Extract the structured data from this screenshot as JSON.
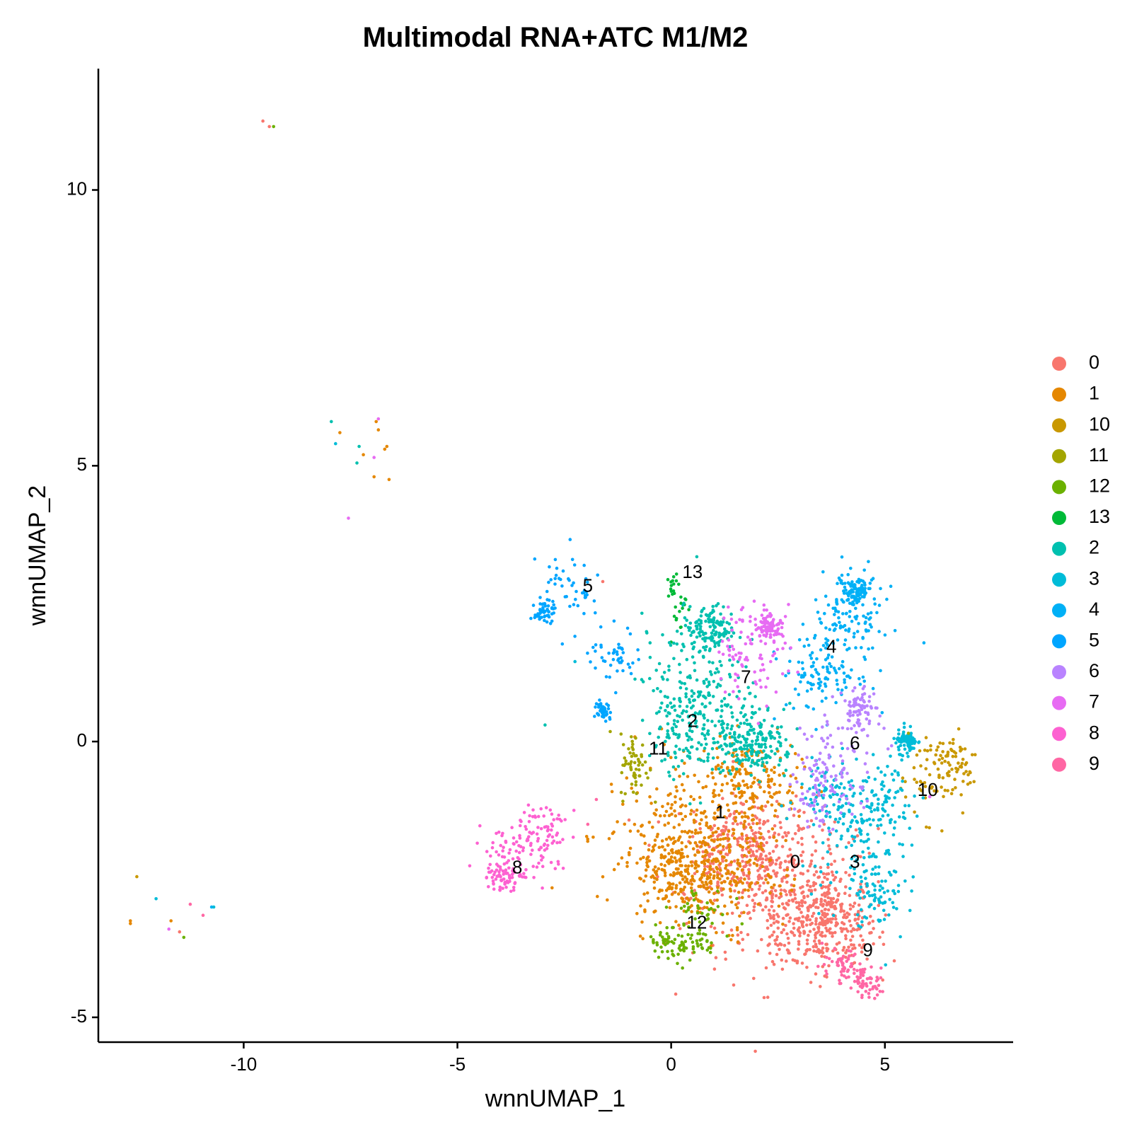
{
  "chart_data": {
    "type": "scatter",
    "title": "Multimodal RNA+ATC M1/M2",
    "xlabel": "wnnUMAP_1",
    "ylabel": "wnnUMAP_2",
    "xlim": [
      -13.4,
      8.0
    ],
    "ylim": [
      -5.45,
      12.2
    ],
    "x_ticks": [
      -10,
      -5,
      0,
      5
    ],
    "y_ticks": [
      -5,
      0,
      5,
      10
    ],
    "grid": false,
    "legend_position": "right",
    "legend": [
      {
        "label": "0",
        "color": "#F8766D"
      },
      {
        "label": "1",
        "color": "#E58700"
      },
      {
        "label": "10",
        "color": "#C99800"
      },
      {
        "label": "11",
        "color": "#A3A500"
      },
      {
        "label": "12",
        "color": "#6BB100"
      },
      {
        "label": "13",
        "color": "#00BA38"
      },
      {
        "label": "2",
        "color": "#00C0AF"
      },
      {
        "label": "3",
        "color": "#00BCD8"
      },
      {
        "label": "4",
        "color": "#00B0F6"
      },
      {
        "label": "5",
        "color": "#00A5FF"
      },
      {
        "label": "6",
        "color": "#B983FF"
      },
      {
        "label": "7",
        "color": "#E76BF3"
      },
      {
        "label": "8",
        "color": "#FD61D1"
      },
      {
        "label": "9",
        "color": "#FF67A4"
      }
    ],
    "clusters": [
      {
        "name": "0",
        "label_pos": [
          2.9,
          -2.2
        ],
        "color": "#F8766D",
        "n": 900,
        "blobs": [
          [
            2.6,
            -2.8,
            1.1,
            0.7
          ],
          [
            1.8,
            -2.0,
            0.8,
            0.5
          ],
          [
            3.6,
            -3.3,
            0.6,
            0.4
          ]
        ]
      },
      {
        "name": "1",
        "label_pos": [
          1.15,
          -1.3
        ],
        "color": "#E58700",
        "n": 750,
        "blobs": [
          [
            0.2,
            -1.6,
            0.9,
            0.7
          ],
          [
            1.3,
            -2.4,
            0.7,
            0.5
          ],
          [
            0.1,
            -2.4,
            0.6,
            0.4
          ],
          [
            1.8,
            -0.8,
            0.6,
            0.4
          ]
        ]
      },
      {
        "name": "10",
        "label_pos": [
          6.0,
          -0.9
        ],
        "color": "#C99800",
        "n": 110,
        "blobs": [
          [
            6.2,
            -0.6,
            0.45,
            0.4
          ],
          [
            6.6,
            -0.3,
            0.3,
            0.25
          ]
        ]
      },
      {
        "name": "11",
        "label_pos": [
          -0.3,
          -0.15
        ],
        "color": "#A3A500",
        "n": 60,
        "blobs": [
          [
            -0.85,
            -0.45,
            0.17,
            0.3
          ]
        ]
      },
      {
        "name": "12",
        "label_pos": [
          0.6,
          -3.3
        ],
        "color": "#6BB100",
        "n": 120,
        "blobs": [
          [
            -0.1,
            -3.6,
            0.25,
            0.15
          ],
          [
            0.45,
            -3.7,
            0.3,
            0.15
          ],
          [
            0.7,
            -3.1,
            0.35,
            0.25
          ]
        ]
      },
      {
        "name": "13",
        "label_pos": [
          0.5,
          3.05
        ],
        "color": "#00BA38",
        "n": 30,
        "blobs": [
          [
            0.05,
            2.85,
            0.06,
            0.12
          ],
          [
            0.15,
            2.4,
            0.1,
            0.25
          ]
        ]
      },
      {
        "name": "2",
        "label_pos": [
          0.5,
          0.35
        ],
        "color": "#00C0AF",
        "n": 600,
        "blobs": [
          [
            0.4,
            1.2,
            0.55,
            0.6
          ],
          [
            0.4,
            0.1,
            0.45,
            0.4
          ],
          [
            1.4,
            0.4,
            0.55,
            0.4
          ],
          [
            0.9,
            2.05,
            0.3,
            0.2
          ],
          [
            2.0,
            -0.1,
            0.4,
            0.25
          ]
        ]
      },
      {
        "name": "3",
        "label_pos": [
          4.3,
          -2.2
        ],
        "color": "#00BCD8",
        "n": 420,
        "blobs": [
          [
            4.2,
            -1.7,
            0.55,
            0.6
          ],
          [
            4.8,
            -2.8,
            0.35,
            0.4
          ],
          [
            5.1,
            -1.2,
            0.35,
            0.45
          ],
          [
            3.8,
            -1.0,
            0.4,
            0.35
          ],
          [
            5.5,
            0.0,
            0.12,
            0.1
          ]
        ]
      },
      {
        "name": "4",
        "label_pos": [
          3.75,
          1.7
        ],
        "color": "#00B0F6",
        "n": 320,
        "blobs": [
          [
            4.2,
            2.2,
            0.4,
            0.45
          ],
          [
            3.5,
            1.3,
            0.45,
            0.45
          ],
          [
            4.3,
            2.7,
            0.2,
            0.12
          ]
        ]
      },
      {
        "name": "5",
        "label_pos": [
          -1.95,
          2.8
        ],
        "color": "#00A5FF",
        "n": 190,
        "blobs": [
          [
            -2.4,
            2.75,
            0.35,
            0.35
          ],
          [
            -2.95,
            2.35,
            0.12,
            0.1
          ],
          [
            -1.6,
            0.55,
            0.07,
            0.1
          ],
          [
            -1.4,
            1.5,
            0.35,
            0.25
          ]
        ]
      },
      {
        "name": "6",
        "label_pos": [
          4.3,
          -0.05
        ],
        "color": "#B983FF",
        "n": 210,
        "blobs": [
          [
            4.0,
            -0.3,
            0.45,
            0.45
          ],
          [
            4.4,
            0.6,
            0.2,
            0.2
          ],
          [
            3.5,
            -0.9,
            0.35,
            0.3
          ]
        ]
      },
      {
        "name": "7",
        "label_pos": [
          1.75,
          1.15
        ],
        "color": "#E76BF3",
        "n": 180,
        "blobs": [
          [
            1.95,
            1.65,
            0.45,
            0.45
          ],
          [
            2.3,
            2.1,
            0.15,
            0.12
          ]
        ]
      },
      {
        "name": "8",
        "label_pos": [
          -3.6,
          -2.3
        ],
        "color": "#FD61D1",
        "n": 200,
        "blobs": [
          [
            -3.55,
            -2.0,
            0.5,
            0.3
          ],
          [
            -3.0,
            -1.65,
            0.3,
            0.3
          ],
          [
            -4.0,
            -2.45,
            0.25,
            0.15
          ]
        ]
      },
      {
        "name": "9",
        "label_pos": [
          4.6,
          -3.8
        ],
        "color": "#FF67A4",
        "n": 110,
        "blobs": [
          [
            4.3,
            -4.25,
            0.3,
            0.12
          ],
          [
            4.55,
            -4.45,
            0.2,
            0.08
          ],
          [
            3.9,
            -4.0,
            0.25,
            0.12
          ]
        ]
      }
    ],
    "outliers": [
      {
        "x": -9.55,
        "y": 11.25,
        "cluster": "0"
      },
      {
        "x": -9.4,
        "y": 11.15,
        "cluster": "0"
      },
      {
        "x": -9.3,
        "y": 11.15,
        "cluster": "12"
      },
      {
        "x": -7.95,
        "y": 5.8,
        "cluster": "2"
      },
      {
        "x": -7.85,
        "y": 5.4,
        "cluster": "3"
      },
      {
        "x": -7.75,
        "y": 5.6,
        "cluster": "1"
      },
      {
        "x": -7.3,
        "y": 5.35,
        "cluster": "2"
      },
      {
        "x": -7.2,
        "y": 5.2,
        "cluster": "1"
      },
      {
        "x": -7.35,
        "y": 5.05,
        "cluster": "2"
      },
      {
        "x": -6.95,
        "y": 5.15,
        "cluster": "7"
      },
      {
        "x": -6.9,
        "y": 5.8,
        "cluster": "1"
      },
      {
        "x": -6.85,
        "y": 5.85,
        "cluster": "7"
      },
      {
        "x": -6.85,
        "y": 5.65,
        "cluster": "1"
      },
      {
        "x": -6.7,
        "y": 5.3,
        "cluster": "1"
      },
      {
        "x": -6.65,
        "y": 5.35,
        "cluster": "1"
      },
      {
        "x": -6.95,
        "y": 4.8,
        "cluster": "1"
      },
      {
        "x": -6.6,
        "y": 4.75,
        "cluster": "1"
      },
      {
        "x": -7.55,
        "y": 4.05,
        "cluster": "7"
      },
      {
        "x": -12.5,
        "y": -2.45,
        "cluster": "10"
      },
      {
        "x": -12.65,
        "y": -3.25,
        "cluster": "1"
      },
      {
        "x": -12.65,
        "y": -3.3,
        "cluster": "1"
      },
      {
        "x": -12.05,
        "y": -2.85,
        "cluster": "3"
      },
      {
        "x": -11.7,
        "y": -3.25,
        "cluster": "1"
      },
      {
        "x": -11.75,
        "y": -3.4,
        "cluster": "7"
      },
      {
        "x": -11.5,
        "y": -3.45,
        "cluster": "0"
      },
      {
        "x": -11.4,
        "y": -3.55,
        "cluster": "12"
      },
      {
        "x": -11.25,
        "y": -2.95,
        "cluster": "9"
      },
      {
        "x": -10.95,
        "y": -3.15,
        "cluster": "9"
      },
      {
        "x": -10.75,
        "y": -3.0,
        "cluster": "4"
      },
      {
        "x": -10.7,
        "y": -3.0,
        "cluster": "3"
      },
      {
        "x": -2.95,
        "y": 0.3,
        "cluster": "2"
      },
      {
        "x": -2.25,
        "y": 1.45,
        "cluster": "3"
      },
      {
        "x": -1.6,
        "y": 2.9,
        "cluster": "0"
      },
      {
        "x": -1.75,
        "y": -1.05,
        "cluster": "9"
      },
      {
        "x": -1.95,
        "y": -1.5,
        "cluster": "9"
      },
      {
        "x": 5.55,
        "y": 0.15,
        "cluster": "11"
      },
      {
        "x": 6.05,
        "y": -1.0,
        "cluster": "7"
      }
    ],
    "cluster_labels": [
      "13",
      "5",
      "4",
      "7",
      "2",
      "6",
      "11",
      "10",
      "1",
      "8",
      "0",
      "3",
      "12",
      "9"
    ]
  }
}
